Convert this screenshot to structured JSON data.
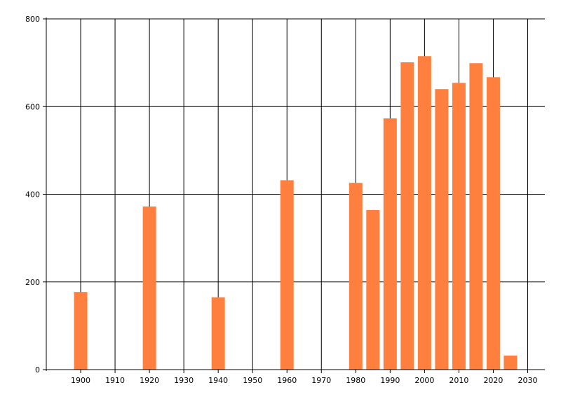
{
  "chart_data": {
    "type": "bar",
    "title": "",
    "xlabel": "",
    "ylabel": "",
    "x": [
      1900,
      1920,
      1940,
      1960,
      1980,
      1985,
      1990,
      1995,
      2000,
      2005,
      2010,
      2015,
      2020,
      2025
    ],
    "values": [
      177,
      372,
      165,
      432,
      426,
      364,
      573,
      701,
      715,
      640,
      654,
      699,
      667,
      32
    ],
    "xlim": [
      1890,
      2035
    ],
    "ylim": [
      0,
      800
    ],
    "x_ticks": [
      "1900",
      "1910",
      "1920",
      "1930",
      "1940",
      "1950",
      "1960",
      "1970",
      "1980",
      "1990",
      "2000",
      "2010",
      "2020",
      "2030"
    ],
    "y_ticks": [
      "0",
      "200",
      "400",
      "600",
      "800"
    ],
    "grid": true,
    "legend": "none",
    "bar_color": "#ff7f3f",
    "grid_color": "#000000"
  }
}
